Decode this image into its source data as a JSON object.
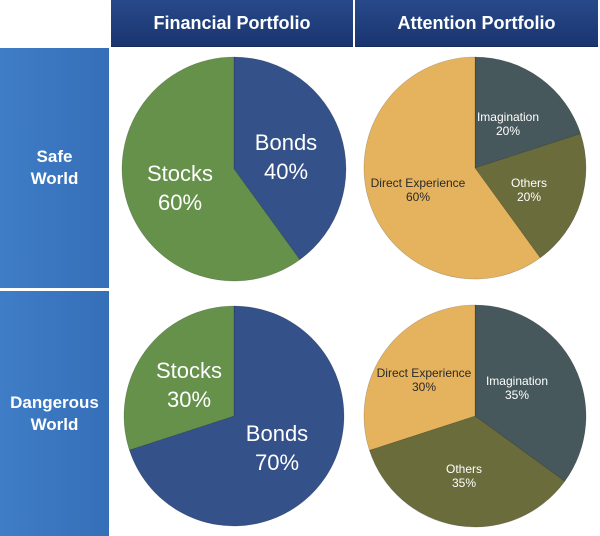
{
  "headers": {
    "columns": [
      "Financial Portfolio",
      "Attention Portfolio"
    ],
    "rows": [
      [
        "Safe",
        "World"
      ],
      [
        "Dangerous",
        "World"
      ]
    ]
  },
  "colors": {
    "stocks": "#65914b",
    "bonds": "#34518a",
    "imagination": "#46585b",
    "others": "#6a6c3c",
    "direct_experience": "#e5b35d"
  },
  "chart_data": [
    {
      "type": "pie",
      "row": "Safe World",
      "column": "Financial Portfolio",
      "slices": [
        {
          "label": "Bonds",
          "value": 40,
          "value_label": "40%",
          "color_key": "bonds"
        },
        {
          "label": "Stocks",
          "value": 60,
          "value_label": "60%",
          "color_key": "stocks"
        }
      ]
    },
    {
      "type": "pie",
      "row": "Safe World",
      "column": "Attention Portfolio",
      "slices": [
        {
          "label": "Imagination",
          "value": 20,
          "value_label": "20%",
          "color_key": "imagination"
        },
        {
          "label": "Others",
          "value": 20,
          "value_label": "20%",
          "color_key": "others"
        },
        {
          "label": "Direct Experience",
          "value": 60,
          "value_label": "60%",
          "color_key": "direct_experience"
        }
      ]
    },
    {
      "type": "pie",
      "row": "Dangerous World",
      "column": "Financial Portfolio",
      "slices": [
        {
          "label": "Bonds",
          "value": 70,
          "value_label": "70%",
          "color_key": "bonds"
        },
        {
          "label": "Stocks",
          "value": 30,
          "value_label": "30%",
          "color_key": "stocks"
        }
      ]
    },
    {
      "type": "pie",
      "row": "Dangerous World",
      "column": "Attention Portfolio",
      "slices": [
        {
          "label": "Imagination",
          "value": 35,
          "value_label": "35%",
          "color_key": "imagination"
        },
        {
          "label": "Others",
          "value": 35,
          "value_label": "35%",
          "color_key": "others"
        },
        {
          "label": "Direct Experience",
          "value": 30,
          "value_label": "30%",
          "color_key": "direct_experience"
        }
      ]
    }
  ]
}
